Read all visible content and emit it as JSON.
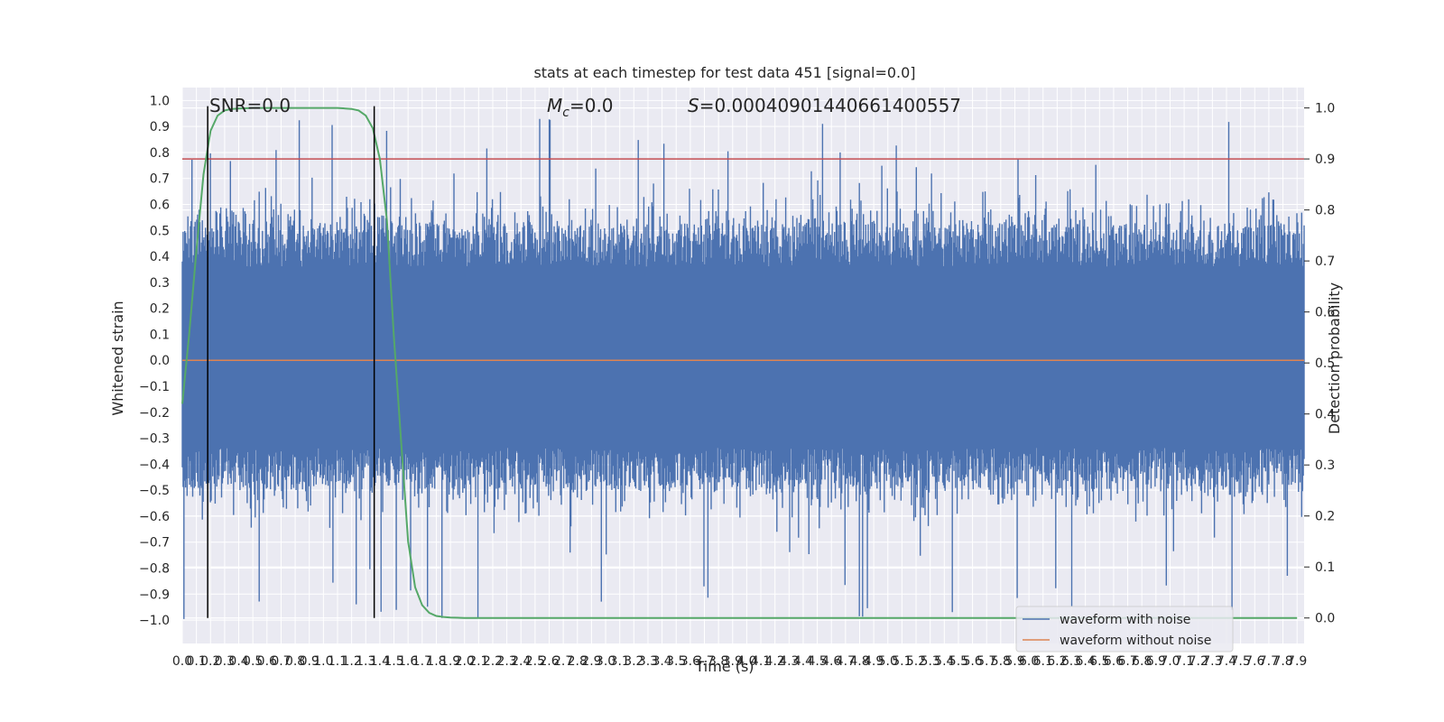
{
  "chart_data": {
    "type": "line",
    "title": "stats at each timestep for test data 451 [signal=0.0]",
    "xlabel": "Time (s)",
    "ylabel": "Whitened strain",
    "ylabel_right": "Detection probability",
    "xlim": [
      0,
      7.95
    ],
    "ylim": [
      -1.09,
      1.05
    ],
    "ylim_right": [
      -0.05,
      1.04
    ],
    "x_ticks": [
      "0.0",
      "0.1",
      "0.2",
      "0.3",
      "0.4",
      "0.5",
      "0.6",
      "0.7",
      "0.8",
      "0.9",
      "1.0",
      "1.1",
      "1.2",
      "1.3",
      "1.4",
      "1.5",
      "1.6",
      "1.7",
      "1.8",
      "1.9",
      "2.0",
      "2.1",
      "2.2",
      "2.3",
      "2.4",
      "2.5",
      "2.6",
      "2.7",
      "2.8",
      "2.9",
      "3.0",
      "3.1",
      "3.2",
      "3.3",
      "3.4",
      "3.5",
      "3.6",
      "3.7",
      "3.8",
      "3.9",
      "4.0",
      "4.1",
      "4.2",
      "4.3",
      "4.4",
      "4.5",
      "4.6",
      "4.7",
      "4.8",
      "4.9",
      "5.0",
      "5.1",
      "5.2",
      "5.3",
      "5.4",
      "5.5",
      "5.6",
      "5.7",
      "5.8",
      "5.9",
      "6.0",
      "6.1",
      "6.2",
      "6.3",
      "6.4",
      "6.5",
      "6.6",
      "6.7",
      "6.8",
      "6.9",
      "7.0",
      "7.1",
      "7.2",
      "7.3",
      "7.4",
      "7.5",
      "7.6",
      "7.7",
      "7.8",
      "7.9"
    ],
    "y_ticks": [
      "−1.0",
      "−0.9",
      "−0.8",
      "−0.7",
      "−0.6",
      "−0.5",
      "−0.4",
      "−0.3",
      "−0.2",
      "−0.1",
      "0.0",
      "0.1",
      "0.2",
      "0.3",
      "0.4",
      "0.5",
      "0.6",
      "0.7",
      "0.8",
      "0.9",
      "1.0"
    ],
    "y_ticks_right": [
      "0.0",
      "0.1",
      "0.2",
      "0.3",
      "0.4",
      "0.5",
      "0.6",
      "0.7",
      "0.8",
      "0.9",
      "1.0"
    ],
    "annotations": {
      "snr": "SNR=0.0",
      "mc_symbol": "M",
      "mc_sub": "c",
      "mc_value": "=0.0",
      "s_symbol": "S",
      "s_value": "=0.00040901440661400557"
    },
    "threshold_right": 0.9,
    "vertical_lines_x": [
      0.18,
      1.36
    ],
    "series": [
      {
        "name": "waveform with noise",
        "color": "#4c72b0",
        "envelope": {
          "upper": 0.48,
          "lower": -0.45,
          "peak_max": 0.93,
          "peak_min": -1.0
        }
      },
      {
        "name": "waveform without noise",
        "color": "#dd8452",
        "constant": 0.0
      }
    ],
    "detection_probability": {
      "color": "#55a868",
      "x": [
        0.0,
        0.05,
        0.1,
        0.15,
        0.2,
        0.25,
        0.3,
        0.35,
        0.4,
        0.5,
        0.6,
        0.8,
        1.0,
        1.1,
        1.2,
        1.25,
        1.3,
        1.35,
        1.4,
        1.45,
        1.5,
        1.55,
        1.6,
        1.65,
        1.7,
        1.75,
        1.8,
        1.85,
        1.9,
        2.0,
        2.2,
        3.0,
        5.0,
        7.9
      ],
      "y": [
        0.42,
        0.56,
        0.72,
        0.87,
        0.955,
        0.985,
        0.995,
        0.998,
        0.999,
        1.0,
        1.0,
        1.0,
        1.0,
        1.0,
        0.998,
        0.995,
        0.985,
        0.96,
        0.9,
        0.78,
        0.55,
        0.35,
        0.15,
        0.06,
        0.025,
        0.01,
        0.004,
        0.002,
        0.001,
        0.0,
        0.0,
        0.0,
        0.0,
        0.0
      ]
    },
    "legend_position": "lower-right",
    "grid": true,
    "colors": {
      "background": "#eaeaf2",
      "grid": "#ffffff",
      "threshold": "#c44e52",
      "vline": "#000000"
    }
  }
}
